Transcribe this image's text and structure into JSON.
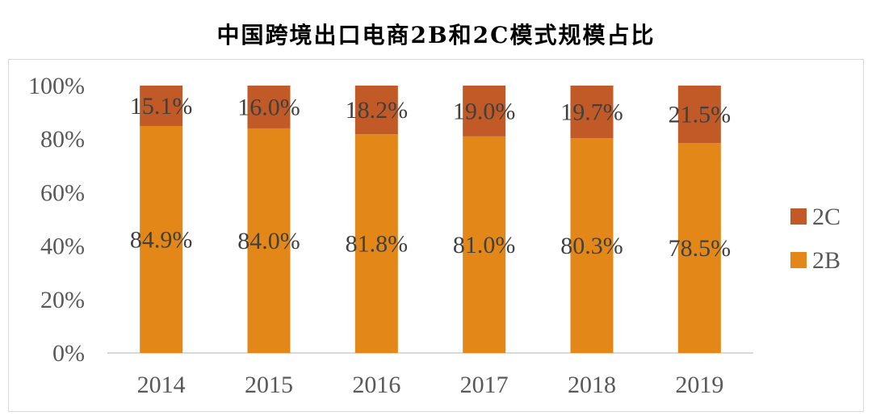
{
  "chart_data": {
    "type": "bar",
    "stacked": true,
    "title": "中国跨境出口电商2B和2C模式规模占比",
    "categories": [
      "2014",
      "2015",
      "2016",
      "2017",
      "2018",
      "2019"
    ],
    "series": [
      {
        "name": "2B",
        "values": [
          84.9,
          84.0,
          81.8,
          81.0,
          80.3,
          78.5
        ],
        "labels": [
          "84.9%",
          "84.0%",
          "81.8%",
          "81.0%",
          "80.3%",
          "78.5%"
        ],
        "color": "#E38718"
      },
      {
        "name": "2C",
        "values": [
          15.1,
          16.0,
          18.2,
          19.0,
          19.7,
          21.5
        ],
        "labels": [
          "15.1%",
          "16.0%",
          "18.2%",
          "19.0%",
          "19.7%",
          "21.5%"
        ],
        "color": "#C15A27"
      }
    ],
    "y_ticks": [
      "0%",
      "20%",
      "40%",
      "60%",
      "80%",
      "100%"
    ],
    "ylim": [
      0,
      100
    ],
    "grid": false,
    "legend": {
      "position": "right",
      "entries": [
        "2C",
        "2B"
      ]
    }
  }
}
